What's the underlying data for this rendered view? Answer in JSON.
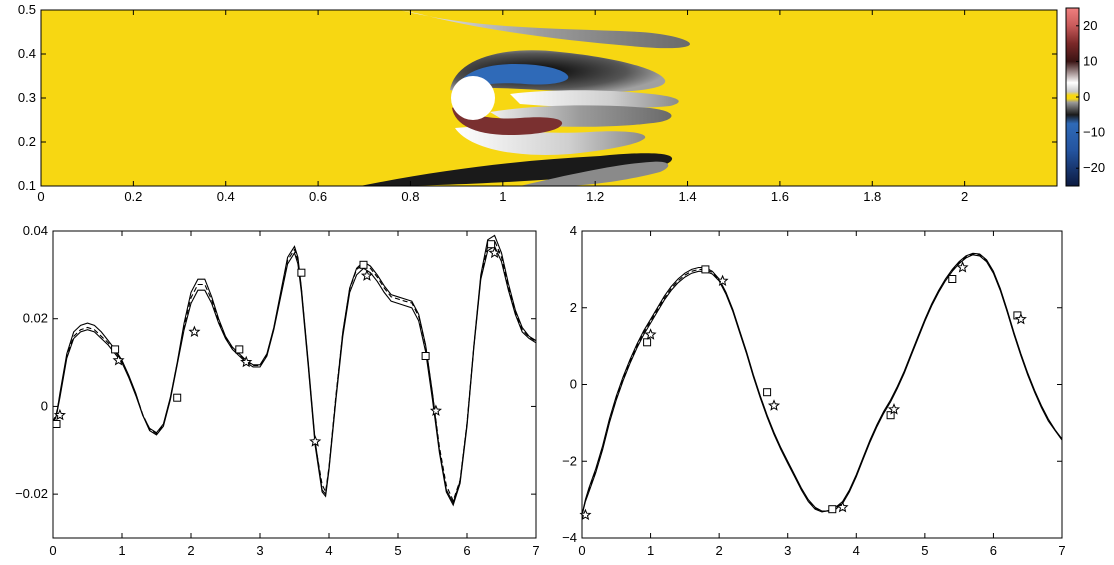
{
  "chart_data": [
    {
      "type": "heatmap",
      "title": "",
      "xlabel": "",
      "ylabel": "",
      "xlim": [
        0,
        2.2
      ],
      "ylim": [
        0.1,
        0.5
      ],
      "x_ticks": [
        "0",
        "0.2",
        "0.4",
        "0.6",
        "0.8",
        "1",
        "1.2",
        "1.4",
        "1.6",
        "1.8",
        "2"
      ],
      "y_ticks": [
        "0.1",
        "0.2",
        "0.3",
        "0.4",
        "0.5"
      ],
      "colorbar": {
        "range": [
          -25,
          25
        ],
        "ticks": [
          "20",
          "10",
          "0",
          "−10",
          "−20"
        ],
        "background_value_color": "#f7d712"
      },
      "cylinder": {
        "center": [
          0.92,
          0.3
        ],
        "radius": 0.05
      }
    },
    {
      "type": "line",
      "title": "",
      "xlabel": "",
      "ylabel": "",
      "xlim": [
        0,
        7
      ],
      "ylim": [
        -0.03,
        0.04
      ],
      "x_ticks": [
        "0",
        "1",
        "2",
        "3",
        "4",
        "5",
        "6",
        "7"
      ],
      "y_ticks": [
        "0.04",
        "0.02",
        "0",
        "−0.02"
      ],
      "series": [
        {
          "style": "solid",
          "x": [
            0,
            0.05,
            0.1,
            0.2,
            0.3,
            0.4,
            0.5,
            0.6,
            0.7,
            0.8,
            0.9,
            1.0,
            1.1,
            1.2,
            1.3,
            1.4,
            1.5,
            1.6,
            1.7,
            1.8,
            1.9,
            2.0,
            2.1,
            2.2,
            2.3,
            2.4,
            2.5,
            2.6,
            2.7,
            2.8,
            2.9,
            3.0,
            3.1,
            3.2,
            3.3,
            3.4,
            3.5,
            3.55,
            3.6,
            3.7,
            3.8,
            3.9,
            3.95,
            4.0,
            4.1,
            4.2,
            4.3,
            4.4,
            4.5,
            4.6,
            4.7,
            4.8,
            4.9,
            5.0,
            5.1,
            5.2,
            5.3,
            5.4,
            5.5,
            5.6,
            5.7,
            5.8,
            5.9,
            6.0,
            6.1,
            6.2,
            6.3,
            6.4,
            6.5,
            6.6,
            6.7,
            6.8,
            6.9,
            7.0
          ],
          "y": [
            -0.004,
            -0.002,
            0.003,
            0.012,
            0.017,
            0.0185,
            0.019,
            0.0185,
            0.017,
            0.015,
            0.013,
            0.0105,
            0.007,
            0.003,
            -0.002,
            -0.005,
            -0.006,
            -0.004,
            0.002,
            0.01,
            0.019,
            0.026,
            0.029,
            0.029,
            0.025,
            0.02,
            0.016,
            0.0135,
            0.012,
            0.0105,
            0.0095,
            0.0095,
            0.012,
            0.018,
            0.026,
            0.034,
            0.0365,
            0.034,
            0.027,
            0.01,
            -0.008,
            -0.019,
            -0.02,
            -0.014,
            0.002,
            0.017,
            0.027,
            0.0315,
            0.033,
            0.032,
            0.03,
            0.0275,
            0.0255,
            0.025,
            0.0245,
            0.024,
            0.021,
            0.014,
            0.003,
            -0.01,
            -0.019,
            -0.022,
            -0.017,
            -0.004,
            0.014,
            0.03,
            0.038,
            0.039,
            0.035,
            0.028,
            0.022,
            0.018,
            0.016,
            0.015
          ]
        },
        {
          "style": "solid",
          "x": [
            0,
            0.05,
            0.1,
            0.2,
            0.3,
            0.4,
            0.5,
            0.6,
            0.7,
            0.8,
            0.9,
            1.0,
            1.1,
            1.2,
            1.3,
            1.4,
            1.5,
            1.6,
            1.7,
            1.8,
            1.9,
            2.0,
            2.1,
            2.2,
            2.3,
            2.4,
            2.5,
            2.6,
            2.7,
            2.8,
            2.9,
            3.0,
            3.1,
            3.2,
            3.3,
            3.4,
            3.5,
            3.55,
            3.6,
            3.7,
            3.8,
            3.9,
            3.95,
            4.0,
            4.1,
            4.2,
            4.3,
            4.4,
            4.5,
            4.6,
            4.7,
            4.8,
            4.9,
            5.0,
            5.1,
            5.2,
            5.3,
            5.4,
            5.5,
            5.6,
            5.7,
            5.8,
            5.9,
            6.0,
            6.1,
            6.2,
            6.3,
            6.4,
            6.5,
            6.6,
            6.7,
            6.8,
            6.9,
            7.0
          ],
          "y": [
            -0.004,
            -0.002,
            0.002,
            0.011,
            0.0155,
            0.017,
            0.0175,
            0.017,
            0.0155,
            0.014,
            0.012,
            0.01,
            0.0065,
            0.0025,
            -0.002,
            -0.0055,
            -0.0065,
            -0.0045,
            0.0015,
            0.0095,
            0.0175,
            0.0235,
            0.0265,
            0.0265,
            0.0235,
            0.019,
            0.0155,
            0.013,
            0.0115,
            0.01,
            0.009,
            0.009,
            0.0115,
            0.0175,
            0.025,
            0.0325,
            0.035,
            0.0325,
            0.026,
            0.009,
            -0.009,
            -0.0195,
            -0.0205,
            -0.0145,
            0.0015,
            0.016,
            0.026,
            0.03,
            0.0315,
            0.0305,
            0.0285,
            0.026,
            0.024,
            0.0235,
            0.023,
            0.0225,
            0.0195,
            0.0125,
            0.0015,
            -0.0105,
            -0.0195,
            -0.0225,
            -0.0175,
            -0.0045,
            0.0135,
            0.029,
            0.0355,
            0.0365,
            0.033,
            0.0265,
            0.021,
            0.017,
            0.0155,
            0.0145
          ]
        },
        {
          "style": "dashed",
          "x": [
            0,
            0.05,
            0.1,
            0.2,
            0.3,
            0.4,
            0.5,
            0.6,
            0.7,
            0.8,
            0.9,
            1.0,
            1.1,
            1.2,
            1.3,
            1.4,
            1.5,
            1.6,
            1.7,
            1.8,
            1.9,
            2.0,
            2.1,
            2.2,
            2.3,
            2.4,
            2.5,
            2.6,
            2.7,
            2.8,
            2.9,
            3.0,
            3.1,
            3.2,
            3.3,
            3.4,
            3.5,
            3.55,
            3.6,
            3.7,
            3.8,
            3.9,
            3.95,
            4.0,
            4.1,
            4.2,
            4.3,
            4.4,
            4.5,
            4.6,
            4.7,
            4.8,
            4.9,
            5.0,
            5.1,
            5.2,
            5.3,
            5.4,
            5.5,
            5.6,
            5.7,
            5.8,
            5.9,
            6.0,
            6.1,
            6.2,
            6.3,
            6.4,
            6.5,
            6.6,
            6.7,
            6.8,
            6.9,
            7.0
          ],
          "y": [
            -0.0035,
            -0.0015,
            0.0025,
            0.0115,
            0.016,
            0.0175,
            0.018,
            0.0175,
            0.016,
            0.0145,
            0.0125,
            0.0103,
            0.0068,
            0.0028,
            -0.0018,
            -0.0052,
            -0.0062,
            -0.0042,
            0.0018,
            0.0098,
            0.0182,
            0.0248,
            0.0278,
            0.0278,
            0.0243,
            0.0195,
            0.0158,
            0.0132,
            0.0118,
            0.0103,
            0.0093,
            0.0093,
            0.0118,
            0.0178,
            0.0255,
            0.0333,
            0.0358,
            0.0333,
            0.0268,
            0.0095,
            -0.0085,
            -0.0178,
            -0.0195,
            -0.0138,
            0.0025,
            0.0168,
            0.0268,
            0.0312,
            0.0325,
            0.0315,
            0.0295,
            0.027,
            0.025,
            0.0245,
            0.024,
            0.0236,
            0.0205,
            0.0138,
            0.0028,
            -0.0092,
            -0.018,
            -0.0215,
            -0.0168,
            -0.0038,
            0.0138,
            0.0295,
            0.0365,
            0.0378,
            0.034,
            0.0272,
            0.0215,
            0.0175,
            0.0158,
            0.0148
          ]
        }
      ],
      "markers": [
        {
          "shape": "square",
          "x": [
            0.05,
            0.9,
            1.8,
            2.7,
            3.6,
            4.5,
            5.4,
            6.35
          ],
          "y": [
            -0.004,
            0.013,
            0.002,
            0.013,
            0.0305,
            0.0323,
            0.0115,
            0.037
          ]
        },
        {
          "shape": "star",
          "x": [
            0.1,
            0.95,
            2.05,
            2.8,
            3.8,
            4.55,
            5.55,
            6.4
          ],
          "y": [
            -0.002,
            0.0105,
            0.017,
            0.0101,
            -0.008,
            0.0298,
            -0.001,
            0.035
          ]
        }
      ]
    },
    {
      "type": "line",
      "title": "",
      "xlabel": "",
      "ylabel": "",
      "xlim": [
        0,
        7
      ],
      "ylim": [
        -4,
        4
      ],
      "x_ticks": [
        "0",
        "1",
        "2",
        "3",
        "4",
        "5",
        "6",
        "7"
      ],
      "y_ticks": [
        "4",
        "2",
        "0",
        "−2",
        "−4"
      ],
      "series": [
        {
          "style": "solid",
          "x": [
            0,
            0.05,
            0.1,
            0.2,
            0.3,
            0.4,
            0.5,
            0.6,
            0.7,
            0.8,
            0.9,
            1.0,
            1.1,
            1.2,
            1.3,
            1.4,
            1.5,
            1.6,
            1.7,
            1.8,
            1.9,
            2.0,
            2.1,
            2.2,
            2.3,
            2.4,
            2.5,
            2.6,
            2.7,
            2.8,
            2.9,
            3.0,
            3.1,
            3.2,
            3.3,
            3.4,
            3.5,
            3.6,
            3.7,
            3.8,
            3.9,
            4.0,
            4.1,
            4.2,
            4.3,
            4.4,
            4.5,
            4.6,
            4.7,
            4.8,
            4.9,
            5.0,
            5.1,
            5.2,
            5.3,
            5.4,
            5.5,
            5.6,
            5.7,
            5.8,
            5.9,
            6.0,
            6.1,
            6.2,
            6.3,
            6.4,
            6.5,
            6.6,
            6.7,
            6.8,
            6.9,
            7.0
          ],
          "y": [
            -3.4,
            -3.0,
            -2.7,
            -2.2,
            -1.6,
            -0.9,
            -0.3,
            0.2,
            0.65,
            1.05,
            1.4,
            1.7,
            2.0,
            2.3,
            2.55,
            2.75,
            2.9,
            3.0,
            3.05,
            3.05,
            2.95,
            2.75,
            2.4,
            1.95,
            1.4,
            0.85,
            0.25,
            -0.3,
            -0.8,
            -1.25,
            -1.65,
            -2.0,
            -2.35,
            -2.7,
            -3.0,
            -3.2,
            -3.3,
            -3.3,
            -3.25,
            -3.1,
            -2.8,
            -2.4,
            -1.95,
            -1.5,
            -1.1,
            -0.75,
            -0.45,
            -0.1,
            0.3,
            0.75,
            1.2,
            1.65,
            2.05,
            2.4,
            2.7,
            2.95,
            3.15,
            3.3,
            3.38,
            3.35,
            3.2,
            2.9,
            2.45,
            1.9,
            1.3,
            0.75,
            0.25,
            -0.2,
            -0.6,
            -0.95,
            -1.2,
            -1.45
          ]
        },
        {
          "style": "solid",
          "x": [
            0,
            0.05,
            0.1,
            0.2,
            0.3,
            0.4,
            0.5,
            0.6,
            0.7,
            0.8,
            0.9,
            1.0,
            1.1,
            1.2,
            1.3,
            1.4,
            1.5,
            1.6,
            1.7,
            1.8,
            1.9,
            2.0,
            2.1,
            2.2,
            2.3,
            2.4,
            2.5,
            2.6,
            2.7,
            2.8,
            2.9,
            3.0,
            3.1,
            3.2,
            3.3,
            3.4,
            3.5,
            3.6,
            3.7,
            3.8,
            3.9,
            4.0,
            4.1,
            4.2,
            4.3,
            4.4,
            4.5,
            4.6,
            4.7,
            4.8,
            4.9,
            5.0,
            5.1,
            5.2,
            5.3,
            5.4,
            5.5,
            5.6,
            5.7,
            5.8,
            5.9,
            6.0,
            6.1,
            6.2,
            6.3,
            6.4,
            6.5,
            6.6,
            6.7,
            6.8,
            6.9,
            7.0
          ],
          "y": [
            -3.4,
            -3.05,
            -2.8,
            -2.3,
            -1.7,
            -1.0,
            -0.4,
            0.1,
            0.55,
            0.95,
            1.3,
            1.6,
            1.9,
            2.2,
            2.45,
            2.65,
            2.8,
            2.9,
            2.95,
            2.95,
            2.88,
            2.7,
            2.35,
            1.9,
            1.35,
            0.8,
            0.2,
            -0.35,
            -0.85,
            -1.3,
            -1.7,
            -2.05,
            -2.4,
            -2.75,
            -3.05,
            -3.25,
            -3.32,
            -3.28,
            -3.2,
            -3.05,
            -2.75,
            -2.35,
            -1.9,
            -1.45,
            -1.05,
            -0.7,
            -0.4,
            -0.05,
            0.35,
            0.8,
            1.25,
            1.7,
            2.1,
            2.45,
            2.75,
            3.0,
            3.2,
            3.35,
            3.42,
            3.4,
            3.25,
            2.95,
            2.5,
            1.95,
            1.35,
            0.8,
            0.3,
            -0.15,
            -0.55,
            -0.9,
            -1.18,
            -1.42
          ]
        },
        {
          "style": "dashed",
          "x": [
            0,
            0.05,
            0.1,
            0.2,
            0.3,
            0.4,
            0.5,
            0.6,
            0.7,
            0.8,
            0.9,
            1.0,
            1.1,
            1.2,
            1.3,
            1.4,
            1.5,
            1.6,
            1.7,
            1.8,
            1.9,
            2.0,
            2.1,
            2.2,
            2.3,
            2.4,
            2.5,
            2.6,
            2.7,
            2.8,
            2.9,
            3.0,
            3.1,
            3.2,
            3.3,
            3.4,
            3.5,
            3.6,
            3.7,
            3.8,
            3.9,
            4.0,
            4.1,
            4.2,
            4.3,
            4.4,
            4.5,
            4.6,
            4.7,
            4.8,
            4.9,
            5.0,
            5.1,
            5.2,
            5.3,
            5.4,
            5.5,
            5.6,
            5.7,
            5.8,
            5.9,
            6.0,
            6.1,
            6.2,
            6.3,
            6.4,
            6.5,
            6.6,
            6.7,
            6.8,
            6.9,
            7.0
          ],
          "y": [
            -3.4,
            -3.02,
            -2.75,
            -2.25,
            -1.65,
            -0.95,
            -0.35,
            0.15,
            0.6,
            1.0,
            1.35,
            1.65,
            1.95,
            2.25,
            2.5,
            2.7,
            2.85,
            2.95,
            3.0,
            3.0,
            2.92,
            2.72,
            2.38,
            1.92,
            1.38,
            0.82,
            0.22,
            -0.32,
            -0.82,
            -1.28,
            -1.68,
            -2.02,
            -2.38,
            -2.72,
            -3.02,
            -3.22,
            -3.31,
            -3.29,
            -3.22,
            -3.08,
            -2.78,
            -2.38,
            -1.92,
            -1.48,
            -1.08,
            -0.72,
            -0.42,
            -0.08,
            0.32,
            0.78,
            1.22,
            1.68,
            2.08,
            2.42,
            2.72,
            2.98,
            3.18,
            3.32,
            3.4,
            3.38,
            3.22,
            2.92,
            2.48,
            1.92,
            1.32,
            0.78,
            0.28,
            -0.18,
            -0.58,
            -0.92,
            -1.19,
            -1.44
          ]
        }
      ],
      "markers": [
        {
          "shape": "square",
          "x": [
            0.95,
            1.8,
            2.7,
            3.65,
            4.5,
            5.4,
            6.35
          ],
          "y": [
            1.1,
            3.0,
            -0.2,
            -3.25,
            -0.8,
            2.75,
            1.8
          ]
        },
        {
          "shape": "star",
          "x": [
            0.05,
            1.0,
            2.05,
            2.8,
            3.8,
            4.55,
            5.55,
            6.4
          ],
          "y": [
            -3.4,
            1.3,
            2.7,
            -0.55,
            -3.2,
            -0.65,
            3.05,
            1.7
          ]
        }
      ]
    }
  ]
}
